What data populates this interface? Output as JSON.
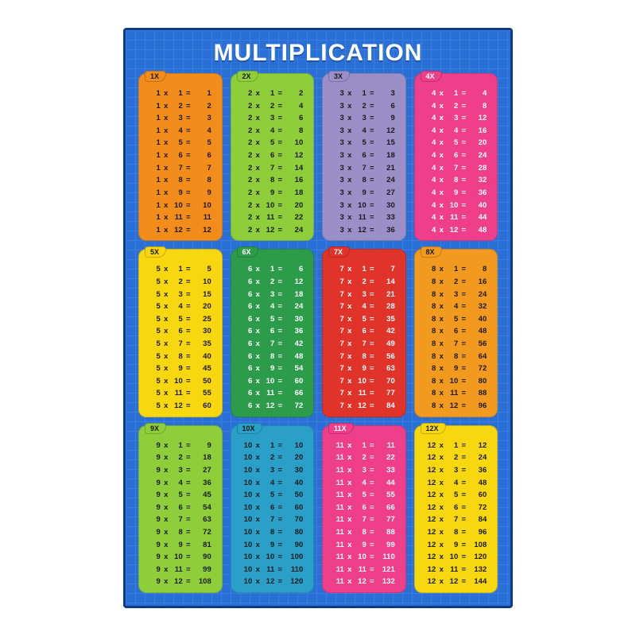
{
  "title": "MULTIPLICATION",
  "poster": {
    "bg_color": "#2a6fd6",
    "grid_color": "#3b7de0",
    "border_color": "#0d3a8a",
    "title_color": "#ffffff",
    "title_fontsize": 30
  },
  "layout": {
    "cols": 4,
    "rows": 3,
    "max_multiplicand": 12
  },
  "tables": [
    {
      "n": 1,
      "label": "1X",
      "card_bg": "#f28c1b",
      "tab_bg": "#f28c1b",
      "text_color": "#1a1a1a"
    },
    {
      "n": 2,
      "label": "2X",
      "card_bg": "#8fce3b",
      "tab_bg": "#8fce3b",
      "text_color": "#1a1a1a"
    },
    {
      "n": 3,
      "label": "3X",
      "card_bg": "#9a8fc7",
      "tab_bg": "#9a8fc7",
      "text_color": "#1a1a1a"
    },
    {
      "n": 4,
      "label": "4X",
      "card_bg": "#ef3e8a",
      "tab_bg": "#ef3e8a",
      "text_color": "#ffffff"
    },
    {
      "n": 5,
      "label": "5X",
      "card_bg": "#f7d70f",
      "tab_bg": "#f7d70f",
      "text_color": "#1a1a1a"
    },
    {
      "n": 6,
      "label": "6X",
      "card_bg": "#2c9b4a",
      "tab_bg": "#2c9b4a",
      "text_color": "#ffffff"
    },
    {
      "n": 7,
      "label": "7X",
      "card_bg": "#e0332a",
      "tab_bg": "#e0332a",
      "text_color": "#ffffff"
    },
    {
      "n": 8,
      "label": "8X",
      "card_bg": "#f29a1f",
      "tab_bg": "#f29a1f",
      "text_color": "#1a1a1a"
    },
    {
      "n": 9,
      "label": "9X",
      "card_bg": "#8fce3b",
      "tab_bg": "#8fce3b",
      "text_color": "#1a1a1a"
    },
    {
      "n": 10,
      "label": "10X",
      "card_bg": "#2aa0c9",
      "tab_bg": "#2aa0c9",
      "text_color": "#1a1a1a"
    },
    {
      "n": 11,
      "label": "11X",
      "card_bg": "#ef3e8a",
      "tab_bg": "#ef3e8a",
      "text_color": "#ffffff"
    },
    {
      "n": 12,
      "label": "12X",
      "card_bg": "#f7d70f",
      "tab_bg": "#f7d70f",
      "text_color": "#1a1a1a"
    }
  ],
  "operators": {
    "times": "x",
    "equals": "="
  }
}
